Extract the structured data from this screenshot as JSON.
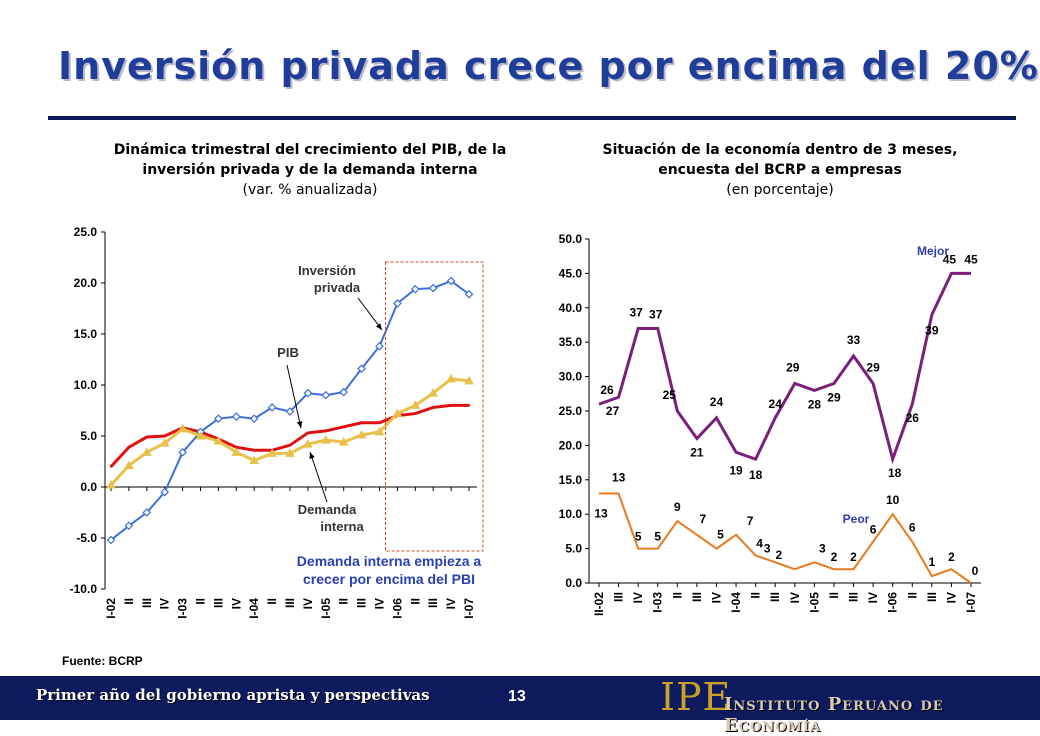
{
  "slide": {
    "title": "Inversión privada crece por encima del 20%",
    "source": "Fuente: BCRP",
    "footer_text": "Primer año del gobierno aprista y perspectivas",
    "page_number": "13",
    "logo_text": "IPE",
    "org_name": "Instituto Peruano de Economía"
  },
  "colors": {
    "title": "#1f3d99",
    "footer_bg": "#0e1a5e",
    "pib": "#e01010",
    "inversion": "#3c6fd8",
    "demanda": "#e8c04a",
    "mejor": "#7a1f7a",
    "peor": "#e87a1f",
    "annotation": "#2a3fb0"
  },
  "chart_data": [
    {
      "type": "line",
      "title": "Dinámica trimestral del crecimiento del PIB, de la inversión privada y de la demanda interna",
      "subtitle": "(var. % anualizada)",
      "x": [
        "I-02",
        "II",
        "III",
        "IV",
        "I-03",
        "II",
        "III",
        "IV",
        "I-04",
        "II",
        "III",
        "IV",
        "I-05",
        "II",
        "III",
        "IV",
        "I-06",
        "II",
        "III",
        "IV",
        "I-07"
      ],
      "x_tick_labels": [
        "I-02",
        "II",
        "III",
        "IV",
        "I-03",
        "II",
        "III",
        "IV",
        "I-04",
        "II",
        "III",
        "IV",
        "I-05",
        "II",
        "III",
        "IV",
        "I-06",
        "II",
        "III",
        "IV",
        "I-07"
      ],
      "ylim": [
        -10,
        25
      ],
      "yticks": [
        "25.0",
        "20.0",
        "15.0",
        "10.0",
        "5.0",
        "0.0",
        "-5.0",
        "-10.0"
      ],
      "series": [
        {
          "name": "PIB",
          "values": [
            2.0,
            3.9,
            4.9,
            5.0,
            5.8,
            5.4,
            4.7,
            3.9,
            3.6,
            3.6,
            4.1,
            5.3,
            5.5,
            5.9,
            6.3,
            6.3,
            7.0,
            7.2,
            7.8,
            8.0,
            8.0
          ]
        },
        {
          "name": "Inversión privada",
          "values": [
            -5.2,
            -3.8,
            -2.5,
            -0.5,
            3.4,
            5.4,
            6.7,
            6.9,
            6.7,
            7.8,
            7.4,
            9.2,
            9.0,
            9.3,
            11.6,
            13.8,
            18.0,
            19.4,
            19.5,
            20.2,
            18.9
          ]
        },
        {
          "name": "Demanda interna",
          "values": [
            0.2,
            2.1,
            3.4,
            4.3,
            5.7,
            5.0,
            4.5,
            3.4,
            2.6,
            3.3,
            3.3,
            4.2,
            4.6,
            4.4,
            5.1,
            5.4,
            7.2,
            8.0,
            9.2,
            10.6,
            10.4
          ]
        }
      ],
      "annotations": [
        "Inversión privada",
        "PIB",
        "Demanda interna",
        "Demanda interna empieza a crecer por encima del PBI"
      ],
      "grid": false
    },
    {
      "type": "line",
      "title": "Situación de la economía dentro de 3 meses, encuesta del BCRP a empresas",
      "subtitle": "(en porcentaje)",
      "x_tick_labels": [
        "II-02",
        "III",
        "IV",
        "I-03",
        "II",
        "III",
        "IV",
        "I-04",
        "II",
        "III",
        "IV",
        "I-05",
        "II",
        "III",
        "IV",
        "I-06",
        "II",
        "III",
        "IV",
        "I-07"
      ],
      "ylim": [
        0,
        50
      ],
      "yticks": [
        "50.0",
        "45.0",
        "40.0",
        "35.0",
        "30.0",
        "25.0",
        "20.0",
        "15.0",
        "10.0",
        "5.0",
        "0.0"
      ],
      "series": [
        {
          "name": "Mejor",
          "values": [
            26,
            27,
            37,
            37,
            25,
            21,
            24,
            19,
            18,
            24,
            29,
            28,
            29,
            33,
            29,
            18,
            26,
            39,
            45,
            45
          ],
          "labels": [
            "26",
            "27",
            "37",
            "37",
            "25",
            "21",
            "24",
            "19",
            "18",
            "24",
            "29",
            "28",
            "29",
            "33",
            "29",
            "18",
            "26",
            "39",
            "45",
            "45"
          ]
        },
        {
          "name": "Peor",
          "values": [
            13,
            13,
            5,
            5,
            9,
            7,
            5,
            7,
            4,
            3,
            2,
            3,
            2,
            2,
            6,
            10,
            6,
            1,
            2,
            0
          ],
          "labels": [
            "13",
            "13",
            "5",
            "5",
            "9",
            "7",
            "5",
            "7",
            "4",
            "3",
            "2",
            "3",
            "2",
            "2",
            "6",
            "10",
            "6",
            "1",
            "2",
            "0"
          ]
        }
      ],
      "grid": false
    }
  ]
}
